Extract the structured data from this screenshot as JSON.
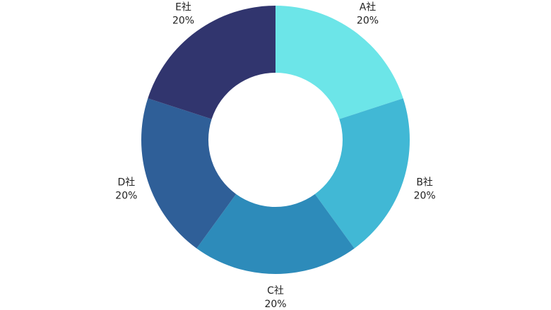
{
  "chart_data": {
    "type": "pie",
    "donut": true,
    "title": "",
    "categories": [
      "A社",
      "B社",
      "C社",
      "D社",
      "E社"
    ],
    "values": [
      20,
      20,
      20,
      20,
      20
    ],
    "value_labels": [
      "20%",
      "20%",
      "20%",
      "20%",
      "20%"
    ],
    "colors": [
      "#6ce5e8",
      "#41b8d5",
      "#2d8bba",
      "#2f5f98",
      "#31356e"
    ],
    "start_angle_deg": 0,
    "direction": "clockwise",
    "legend": "none"
  }
}
